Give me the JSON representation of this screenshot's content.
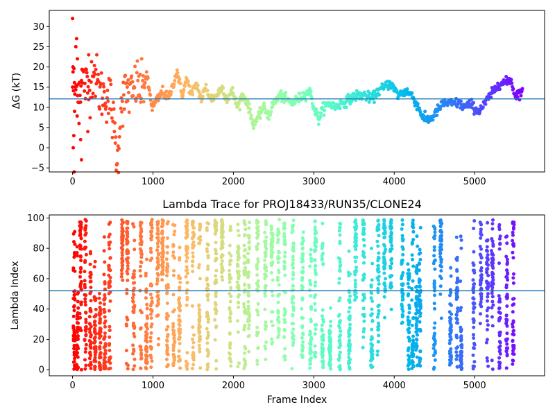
{
  "chart_data": [
    {
      "type": "scatter",
      "title": "",
      "xlabel": "",
      "ylabel": "ΔG (kT)",
      "xlim": [
        -290,
        5870
      ],
      "ylim": [
        -6,
        34
      ],
      "xticks": [
        0,
        1000,
        2000,
        3000,
        4000,
        5000
      ],
      "xtick_labels": [
        "0",
        "1000",
        "2000",
        "3000",
        "4000",
        "5000"
      ],
      "yticks": [
        -5,
        0,
        5,
        10,
        15,
        20,
        25,
        30
      ],
      "ytick_labels": [
        "−5",
        "0",
        "5",
        "10",
        "15",
        "20",
        "25",
        "30"
      ],
      "hline": 12.1,
      "hline_color": "#1f77b4",
      "colormap": "rainbow (red at frame 0 → violet at last frame)",
      "trace_keypoints": [
        [
          0,
          16
        ],
        [
          40,
          14
        ],
        [
          80,
          15
        ],
        [
          130,
          17
        ],
        [
          200,
          14
        ],
        [
          260,
          20
        ],
        [
          330,
          14
        ],
        [
          400,
          13
        ],
        [
          470,
          12
        ],
        [
          520,
          4
        ],
        [
          560,
          -4
        ],
        [
          600,
          11
        ],
        [
          680,
          14
        ],
        [
          740,
          13
        ],
        [
          800,
          16
        ],
        [
          860,
          14
        ],
        [
          920,
          18
        ],
        [
          990,
          10
        ],
        [
          1060,
          12
        ],
        [
          1120,
          14
        ],
        [
          1190,
          12
        ],
        [
          1240,
          15
        ],
        [
          1300,
          19
        ],
        [
          1360,
          13
        ],
        [
          1420,
          17
        ],
        [
          1480,
          13
        ],
        [
          1540,
          16
        ],
        [
          1600,
          12
        ],
        [
          1660,
          15
        ],
        [
          1720,
          12
        ],
        [
          1790,
          13
        ],
        [
          1860,
          15
        ],
        [
          1920,
          12
        ],
        [
          1990,
          14
        ],
        [
          2050,
          10
        ],
        [
          2110,
          13
        ],
        [
          2180,
          11
        ],
        [
          2240,
          6
        ],
        [
          2300,
          7
        ],
        [
          2370,
          10
        ],
        [
          2440,
          8
        ],
        [
          2500,
          11
        ],
        [
          2580,
          13
        ],
        [
          2650,
          12
        ],
        [
          2730,
          11
        ],
        [
          2800,
          12
        ],
        [
          2870,
          13
        ],
        [
          2950,
          14
        ],
        [
          3000,
          10
        ],
        [
          3060,
          7
        ],
        [
          3120,
          10
        ],
        [
          3200,
          11
        ],
        [
          3260,
          10
        ],
        [
          3350,
          11
        ],
        [
          3440,
          12
        ],
        [
          3540,
          13
        ],
        [
          3640,
          13
        ],
        [
          3720,
          12
        ],
        [
          3800,
          14
        ],
        [
          3880,
          15
        ],
        [
          3950,
          16
        ],
        [
          4050,
          13
        ],
        [
          4150,
          14
        ],
        [
          4220,
          13
        ],
        [
          4300,
          10
        ],
        [
          4370,
          7
        ],
        [
          4450,
          7
        ],
        [
          4530,
          9
        ],
        [
          4610,
          11
        ],
        [
          4700,
          11
        ],
        [
          4800,
          11
        ],
        [
          4880,
          10
        ],
        [
          4950,
          11
        ],
        [
          5030,
          9
        ],
        [
          5100,
          10
        ],
        [
          5160,
          12
        ],
        [
          5240,
          14
        ],
        [
          5300,
          16
        ],
        [
          5380,
          16
        ],
        [
          5450,
          17
        ],
        [
          5500,
          13
        ],
        [
          5600,
          14
        ]
      ],
      "outliers": [
        [
          0,
          32
        ],
        [
          5,
          20
        ],
        [
          8,
          0
        ],
        [
          15,
          3
        ],
        [
          25,
          9
        ],
        [
          40,
          25
        ],
        [
          50,
          27
        ],
        [
          60,
          22
        ],
        [
          80,
          6
        ],
        [
          100,
          2
        ],
        [
          110,
          -3
        ],
        [
          20,
          -6
        ],
        [
          190,
          4
        ],
        [
          200,
          23
        ]
      ]
    },
    {
      "type": "scatter",
      "title": "Lambda Trace for PROJ18433/RUN35/CLONE24",
      "xlabel": "Frame Index",
      "ylabel": "Lambda Index",
      "xlim": [
        -290,
        5870
      ],
      "ylim": [
        -4,
        102
      ],
      "xticks": [
        0,
        1000,
        2000,
        3000,
        4000,
        5000
      ],
      "xtick_labels": [
        "0",
        "1000",
        "2000",
        "3000",
        "4000",
        "5000"
      ],
      "yticks": [
        0,
        20,
        40,
        60,
        80,
        100
      ],
      "ytick_labels": [
        "0",
        "20",
        "40",
        "60",
        "80",
        "100"
      ],
      "hline": 52,
      "hline_color": "#1f77b4",
      "colormap": "rainbow (red at frame 0 → violet at last frame)",
      "frame_range": [
        0,
        5600
      ],
      "lambda_range": [
        0,
        99
      ],
      "dense_columns_center": [
        20,
        60,
        100,
        160,
        220,
        280,
        340,
        400,
        460,
        620,
        680,
        760,
        850,
        920,
        980,
        1060,
        1120,
        1180,
        1260,
        1330,
        1420,
        1500,
        1580,
        1680,
        1780,
        1860,
        1960,
        2060,
        2140,
        2190,
        2300,
        2400,
        2480,
        2560,
        2640,
        2740,
        2860,
        2960,
        3020,
        3110,
        3200,
        3320,
        3440,
        3520,
        3620,
        3720,
        3800,
        3880,
        3960,
        4100,
        4180,
        4230,
        4280,
        4320,
        4500,
        4580,
        4700,
        4780,
        4830,
        4990,
        5080,
        5160,
        5220,
        5310,
        5400,
        5480
      ]
    }
  ]
}
